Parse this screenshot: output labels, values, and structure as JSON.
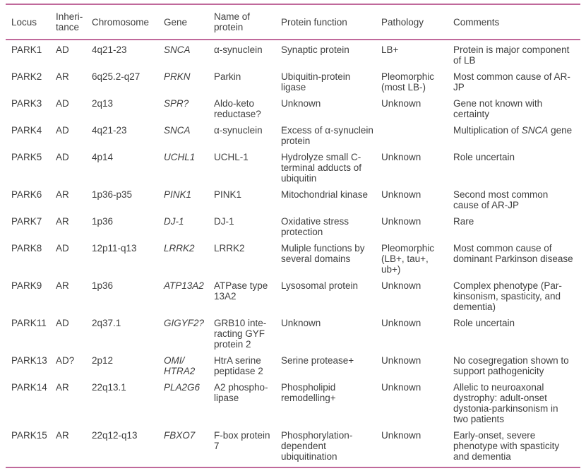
{
  "colors": {
    "rule": "#c0699b",
    "text": "#3e3e3e",
    "background": "#ffffff"
  },
  "table": {
    "columns": [
      {
        "key": "locus",
        "label": "Locus"
      },
      {
        "key": "inheritance",
        "label": "Inheri-tance"
      },
      {
        "key": "chromosome",
        "label": "Chromosome"
      },
      {
        "key": "gene",
        "label": "Gene"
      },
      {
        "key": "protein_name",
        "label": "Name of protein"
      },
      {
        "key": "protein_function",
        "label": "Protein function"
      },
      {
        "key": "pathology",
        "label": "Pathology"
      },
      {
        "key": "comments",
        "label": "Comments"
      }
    ],
    "rows": [
      {
        "locus": "PARK1",
        "inheritance": "AD",
        "chromosome": "4q21-23",
        "gene": "SNCA",
        "protein_name": "α-synuclein",
        "protein_function": "Synaptic protein",
        "pathology": "LB+",
        "comments": "Protein is major component of LB"
      },
      {
        "locus": "PARK2",
        "inheritance": "AR",
        "chromosome": "6q25.2-q27",
        "gene": "PRKN",
        "protein_name": "Parkin",
        "protein_function": "Ubiquitin-protein ligase",
        "pathology": "Pleomorphic (most LB-)",
        "comments": "Most common cause of AR-JP"
      },
      {
        "locus": "PARK3",
        "inheritance": "AD",
        "chromosome": "2q13",
        "gene": "SPR?",
        "protein_name": "Aldo-keto reductase?",
        "protein_function": "Unknown",
        "pathology": "Unknown",
        "comments": "Gene not known with certainty"
      },
      {
        "locus": "PARK4",
        "inheritance": "AD",
        "chromosome": "4q21-23",
        "gene": "SNCA",
        "protein_name": "α-synuclein",
        "protein_function": "Excess of α-synuclein protein",
        "pathology": "",
        "comments": "Multiplication of *SNCA* gene"
      },
      {
        "locus": "PARK5",
        "inheritance": "AD",
        "chromosome": "4p14",
        "gene": "UCHL1",
        "protein_name": "UCHL-1",
        "protein_function": "Hydrolyze small C-terminal adducts of ubiquitin",
        "pathology": "Unknown",
        "comments": "Role uncertain"
      },
      {
        "locus": "PARK6",
        "inheritance": "AR",
        "chromosome": "1p36-p35",
        "gene": "PINK1",
        "protein_name": "PINK1",
        "protein_function": "Mitochondrial kinase",
        "pathology": "Unknown",
        "comments": "Second most common cause of AR-JP"
      },
      {
        "locus": "PARK7",
        "inheritance": "AR",
        "chromosome": "1p36",
        "gene": "DJ-1",
        "protein_name": "DJ-1",
        "protein_function": "Oxidative stress protection",
        "pathology": "Unknown",
        "comments": "Rare"
      },
      {
        "locus": "PARK8",
        "inheritance": "AD",
        "chromosome": "12p11-q13",
        "gene": "LRRK2",
        "protein_name": "LRRK2",
        "protein_function": "Muliple functions by several domains",
        "pathology": "Pleomorphic (LB+, tau+, ub+)",
        "comments": "Most common cause of dominant Parkinson disease"
      },
      {
        "locus": "PARK9",
        "inheritance": "AR",
        "chromosome": "1p36",
        "gene": "ATP13A2",
        "protein_name": "ATPase type 13A2",
        "protein_function": "Lysosomal protein",
        "pathology": "Unknown",
        "comments": "Complex phenotype (Par-kinsonism, spasticity, and dementia)"
      },
      {
        "locus": "PARK11",
        "inheritance": "AD",
        "chromosome": "2q37.1",
        "gene": "GIGYF2?",
        "protein_name": "GRB10 inte-racting GYF protein 2",
        "protein_function": "Unknown",
        "pathology": "Unknown",
        "comments": "Role uncertain"
      },
      {
        "locus": "PARK13",
        "inheritance": "AD?",
        "chromosome": "2p12",
        "gene": "OMI/\nHTRA2",
        "protein_name": "HtrA serine peptidase 2",
        "protein_function": "Serine protease+",
        "pathology": "Unknown",
        "comments": "No cosegregation shown to support pathogenicity"
      },
      {
        "locus": "PARK14",
        "inheritance": "AR",
        "chromosome": "22q13.1",
        "gene": "PLA2G6",
        "protein_name": "A2 phospho-lipase",
        "protein_function": "Phospholipid remodelling+",
        "pathology": "Unknown",
        "comments": "Allelic to neuroaxonal dystrophy: adult-onset dystonia-parkinsonism in two patients"
      },
      {
        "locus": "PARK15",
        "inheritance": "AR",
        "chromosome": "22q12-q13",
        "gene": "FBXO7",
        "protein_name": "F-box protein 7",
        "protein_function": "Phosphorylation-dependent ubiquitination",
        "pathology": "Unknown",
        "comments": "Early-onset, severe phenotype with spasticity and dementia"
      }
    ]
  }
}
